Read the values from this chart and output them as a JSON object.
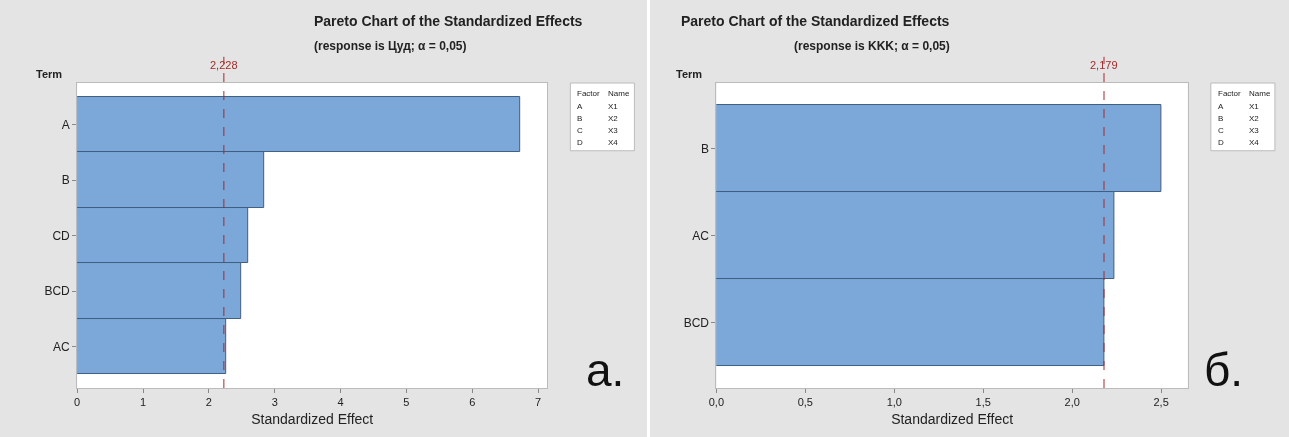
{
  "chart_data": [
    {
      "type": "bar",
      "orientation": "horizontal",
      "title": "Pareto Chart of the Standardized Effects",
      "subtitle": "(response is Цуд; α = 0,05)",
      "xlabel": "Standardized Effect",
      "ylabel": "Term",
      "categories": [
        "A",
        "B",
        "CD",
        "BCD",
        "AC"
      ],
      "values": [
        6.73,
        2.84,
        2.59,
        2.49,
        2.26
      ],
      "color": "#7ba7d9",
      "xlim": [
        0,
        7.14
      ],
      "xticks": [
        0,
        1,
        2,
        3,
        4,
        5,
        6,
        7
      ],
      "ref_lines": [
        {
          "axis": "x",
          "value": 2.228,
          "label": "2,228",
          "color": "#a52a2a",
          "line_style": "dashed"
        }
      ],
      "annotations": [
        "Factor",
        "Name",
        "A",
        "X1",
        "B",
        "X2",
        "C",
        "X3",
        "D",
        "X4",
        "a."
      ]
    },
    {
      "type": "bar",
      "orientation": "horizontal",
      "title": "Pareto Chart of the Standardized Effects",
      "subtitle": "(response is KKK; α = 0,05)",
      "xlabel": "Standardized Effect",
      "ylabel": "Term",
      "categories": [
        "B",
        "AC",
        "BCD"
      ],
      "values": [
        2.5,
        2.24,
        2.18
      ],
      "color": "#7ba7d9",
      "xlim": [
        0,
        2.65
      ],
      "xticks": [
        {
          "value": 0,
          "label": "0,0"
        },
        {
          "value": 0.5,
          "label": "0,5"
        },
        {
          "value": 1,
          "label": "1,0"
        },
        {
          "value": 1.5,
          "label": "1,5"
        },
        {
          "value": 2,
          "label": "2,0"
        },
        {
          "value": 2.5,
          "label": "2,5"
        }
      ],
      "ref_lines": [
        {
          "axis": "x",
          "value": 2.179,
          "label": "2,179",
          "color": "#a52a2a",
          "line_style": "dashed"
        }
      ],
      "annotations": [
        "Factor",
        "Name",
        "A",
        "X1",
        "B",
        "X2",
        "C",
        "X3",
        "D",
        "X4",
        "б."
      ]
    }
  ]
}
